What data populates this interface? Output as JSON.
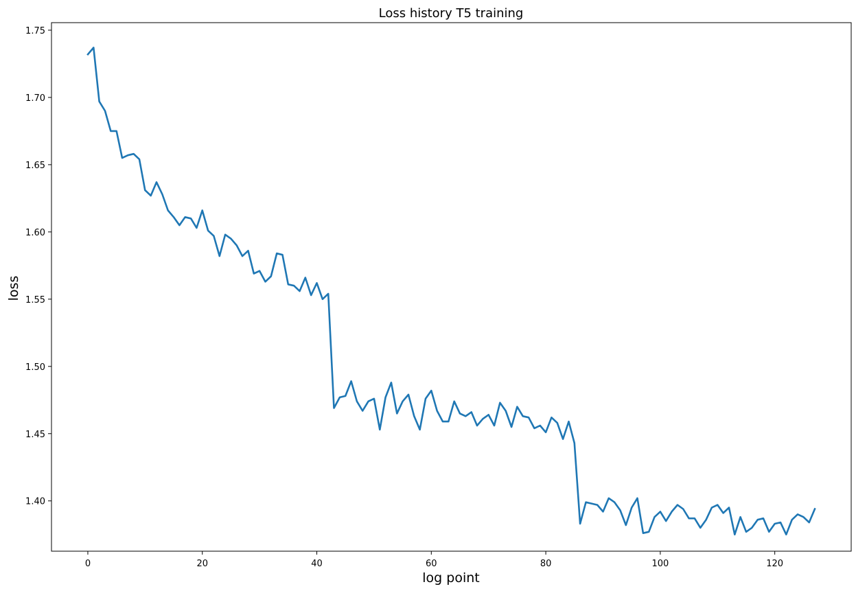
{
  "chart_data": {
    "type": "line",
    "title": "Loss history T5 training",
    "xlabel": "log point",
    "ylabel": "loss",
    "xlim": [
      -6.35,
      133.35
    ],
    "ylim": [
      1.3626,
      1.7556
    ],
    "xticks": [
      0,
      20,
      40,
      60,
      80,
      100,
      120
    ],
    "yticks": [
      1.4,
      1.45,
      1.5,
      1.55,
      1.6,
      1.65,
      1.7,
      1.75
    ],
    "ytick_labels": [
      "1.40",
      "1.45",
      "1.50",
      "1.55",
      "1.60",
      "1.65",
      "1.70",
      "1.75"
    ],
    "grid": false,
    "line_color": "#1f77b4",
    "series": [
      {
        "name": "",
        "x": [
          0,
          1,
          2,
          3,
          4,
          5,
          6,
          7,
          8,
          9,
          10,
          11,
          12,
          13,
          14,
          15,
          16,
          17,
          18,
          19,
          20,
          21,
          22,
          23,
          24,
          25,
          26,
          27,
          28,
          29,
          30,
          31,
          32,
          33,
          34,
          35,
          36,
          37,
          38,
          39,
          40,
          41,
          42,
          43,
          44,
          45,
          46,
          47,
          48,
          49,
          50,
          51,
          52,
          53,
          54,
          55,
          56,
          57,
          58,
          59,
          60,
          61,
          62,
          63,
          64,
          65,
          66,
          67,
          68,
          69,
          70,
          71,
          72,
          73,
          74,
          75,
          76,
          77,
          78,
          79,
          80,
          81,
          82,
          83,
          84,
          85,
          86,
          87,
          88,
          89,
          90,
          91,
          92,
          93,
          94,
          95,
          96,
          97,
          98,
          99,
          100,
          101,
          102,
          103,
          104,
          105,
          106,
          107,
          108,
          109,
          110,
          111,
          112,
          113,
          114,
          115,
          116,
          117,
          118,
          119,
          120,
          121,
          122,
          123,
          124,
          125,
          126,
          127
        ],
        "y": [
          1.732,
          1.737,
          1.697,
          1.69,
          1.675,
          1.675,
          1.655,
          1.657,
          1.658,
          1.654,
          1.631,
          1.627,
          1.637,
          1.628,
          1.616,
          1.611,
          1.605,
          1.611,
          1.61,
          1.603,
          1.616,
          1.601,
          1.597,
          1.582,
          1.598,
          1.595,
          1.59,
          1.582,
          1.586,
          1.569,
          1.571,
          1.563,
          1.567,
          1.584,
          1.583,
          1.561,
          1.56,
          1.556,
          1.566,
          1.553,
          1.562,
          1.55,
          1.554,
          1.469,
          1.477,
          1.478,
          1.489,
          1.474,
          1.467,
          1.474,
          1.476,
          1.453,
          1.477,
          1.488,
          1.465,
          1.474,
          1.479,
          1.463,
          1.453,
          1.476,
          1.482,
          1.467,
          1.459,
          1.459,
          1.474,
          1.465,
          1.463,
          1.466,
          1.456,
          1.461,
          1.464,
          1.456,
          1.473,
          1.467,
          1.455,
          1.47,
          1.463,
          1.462,
          1.454,
          1.456,
          1.451,
          1.462,
          1.458,
          1.446,
          1.459,
          1.443,
          1.383,
          1.399,
          1.398,
          1.397,
          1.392,
          1.402,
          1.399,
          1.393,
          1.382,
          1.395,
          1.402,
          1.376,
          1.377,
          1.388,
          1.392,
          1.385,
          1.392,
          1.397,
          1.394,
          1.387,
          1.387,
          1.38,
          1.386,
          1.395,
          1.397,
          1.391,
          1.395,
          1.375,
          1.388,
          1.377,
          1.38,
          1.386,
          1.387,
          1.377,
          1.383,
          1.384,
          1.375,
          1.386,
          1.39,
          1.388,
          1.384,
          1.394
        ]
      }
    ]
  }
}
